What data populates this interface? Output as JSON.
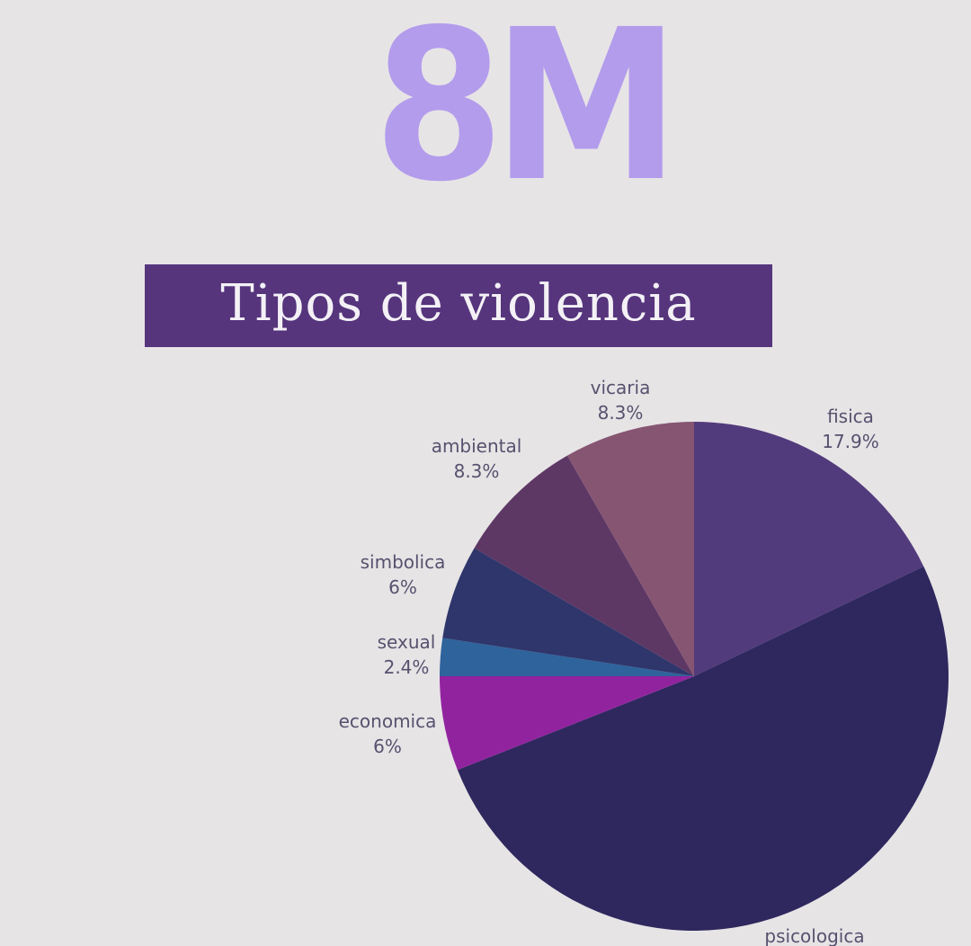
{
  "logo": {
    "text": "8M",
    "color": "#b39cec"
  },
  "banner": {
    "title": "Tipos de violencia",
    "background": "#56357d",
    "text_color": "#f4f1f6"
  },
  "chart_data": {
    "type": "pie",
    "title": "Tipos de violencia",
    "start_angle_deg": 0,
    "direction": "clockwise",
    "slices": [
      {
        "label": "fisica",
        "percent_label": "17.9%",
        "value": 17.9,
        "color": "#523b7c"
      },
      {
        "label": "psicologica",
        "percent_label": "",
        "value": 51.1,
        "color": "#2e285e"
      },
      {
        "label": "economica",
        "percent_label": "6%",
        "value": 6.0,
        "color": "#92239f"
      },
      {
        "label": "sexual",
        "percent_label": "2.4%",
        "value": 2.4,
        "color": "#2e639c"
      },
      {
        "label": "simbolica",
        "percent_label": "6%",
        "value": 6.0,
        "color": "#2f366b"
      },
      {
        "label": "ambiental",
        "percent_label": "8.3%",
        "value": 8.3,
        "color": "#5e3865"
      },
      {
        "label": "vicaria",
        "percent_label": "8.3%",
        "value": 8.3,
        "color": "#865572"
      }
    ],
    "label_color": "#58516e"
  }
}
